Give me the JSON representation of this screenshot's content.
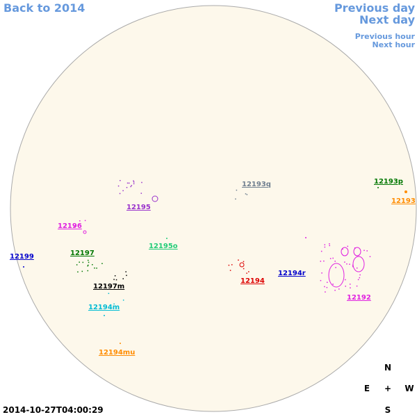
{
  "nav": {
    "back": "Back to 2014",
    "previous_day": "Previous day",
    "next_day": "Next day",
    "previous_hour": "Previous hour",
    "next_hour": "Next hour"
  },
  "regions": [
    {
      "label": "12193q",
      "color": "#708090"
    },
    {
      "label": "12193p",
      "color": "#007700"
    },
    {
      "label": "12193",
      "color": "#ff8c00"
    },
    {
      "label": "12195",
      "color": "#9932cc"
    },
    {
      "label": "12196",
      "color": "#e020e0"
    },
    {
      "label": "12195o",
      "color": "#22cc77"
    },
    {
      "label": "12199",
      "color": "#0000cc"
    },
    {
      "label": "12197",
      "color": "#007700"
    },
    {
      "label": "12194",
      "color": "#dd0000"
    },
    {
      "label": "12194r",
      "color": "#0000cc"
    },
    {
      "label": "12192",
      "color": "#e020e0"
    },
    {
      "label": "12197m",
      "color": "#000000"
    },
    {
      "label": "12194m",
      "color": "#00bcd4"
    },
    {
      "label": "12194mu",
      "color": "#ff8c00"
    }
  ],
  "compass": {
    "north": "N",
    "east": "E",
    "center": "+",
    "west": "W",
    "south": "S"
  },
  "timestamp": "2014-10-27T04:00:29"
}
